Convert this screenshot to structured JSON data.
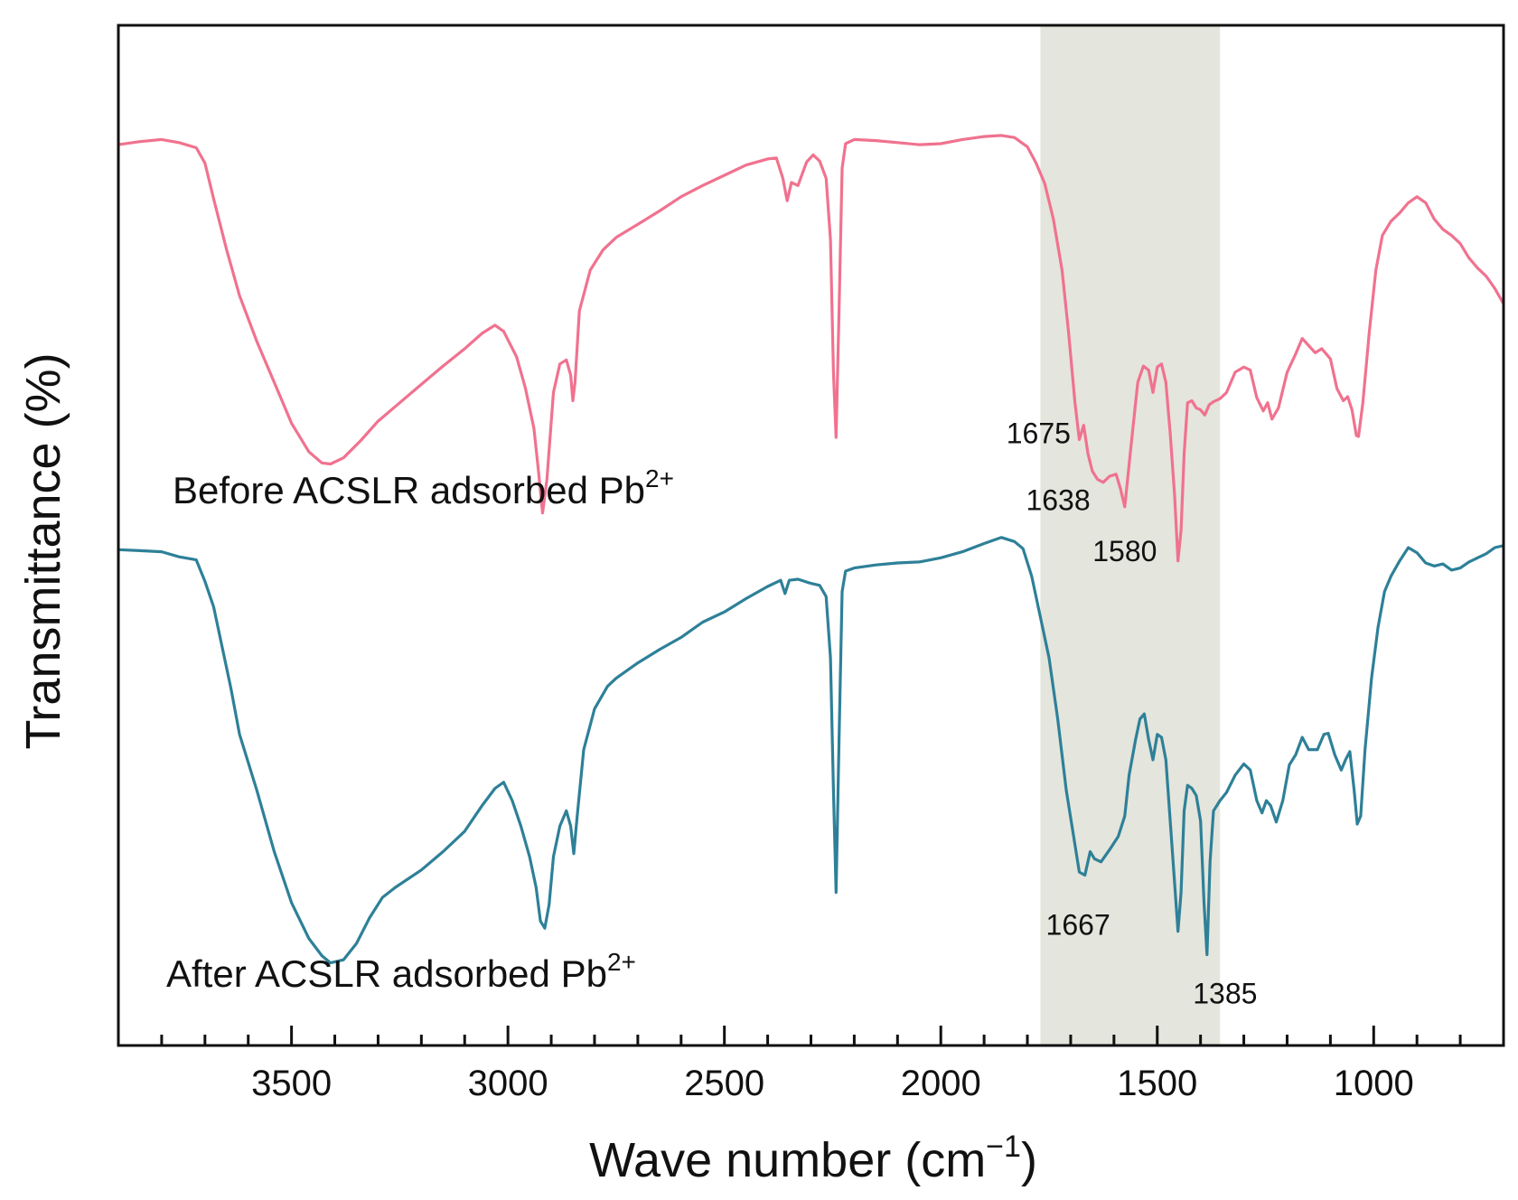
{
  "chart_data": {
    "type": "line",
    "title": "",
    "xlabel": "Wave number (cm",
    "xlabel_sup": "−1",
    "xlabel_end": ")",
    "ylabel": "Transmittance (%)",
    "xlim": [
      3900,
      700
    ],
    "x_reversed": true,
    "xticks": [
      3500,
      3000,
      2500,
      2000,
      1500,
      1000
    ],
    "yticks_shown": false,
    "grid": false,
    "legend": "none",
    "highlight_band": {
      "x_from": 1770,
      "x_to": 1355,
      "color": "#e4e5dc"
    },
    "series": [
      {
        "name": "Before ACSLR adsorbed Pb",
        "name_sup": "2+",
        "color": "#f0728f",
        "points": [
          [
            3900,
            88.3
          ],
          [
            3850,
            88.6
          ],
          [
            3800,
            88.8
          ],
          [
            3760,
            88.5
          ],
          [
            3720,
            88.0
          ],
          [
            3700,
            86.5
          ],
          [
            3680,
            83.0
          ],
          [
            3650,
            78.0
          ],
          [
            3620,
            73.5
          ],
          [
            3580,
            69.0
          ],
          [
            3540,
            65.0
          ],
          [
            3500,
            61.0
          ],
          [
            3460,
            58.2
          ],
          [
            3430,
            57.1
          ],
          [
            3410,
            57.0
          ],
          [
            3380,
            57.6
          ],
          [
            3340,
            59.3
          ],
          [
            3300,
            61.2
          ],
          [
            3250,
            63.0
          ],
          [
            3200,
            64.8
          ],
          [
            3150,
            66.6
          ],
          [
            3100,
            68.3
          ],
          [
            3060,
            69.8
          ],
          [
            3030,
            70.6
          ],
          [
            3010,
            70.0
          ],
          [
            2980,
            67.5
          ],
          [
            2960,
            64.5
          ],
          [
            2940,
            60.5
          ],
          [
            2930,
            56.5
          ],
          [
            2920,
            52.2
          ],
          [
            2910,
            55.5
          ],
          [
            2895,
            64.0
          ],
          [
            2880,
            66.8
          ],
          [
            2865,
            67.2
          ],
          [
            2855,
            65.7
          ],
          [
            2850,
            63.2
          ],
          [
            2845,
            65.0
          ],
          [
            2835,
            72.0
          ],
          [
            2810,
            76.0
          ],
          [
            2780,
            78.0
          ],
          [
            2750,
            79.2
          ],
          [
            2700,
            80.5
          ],
          [
            2650,
            81.8
          ],
          [
            2600,
            83.2
          ],
          [
            2550,
            84.3
          ],
          [
            2500,
            85.3
          ],
          [
            2450,
            86.3
          ],
          [
            2400,
            86.9
          ],
          [
            2380,
            87.0
          ],
          [
            2365,
            85.0
          ],
          [
            2355,
            82.8
          ],
          [
            2345,
            84.6
          ],
          [
            2330,
            84.3
          ],
          [
            2310,
            86.6
          ],
          [
            2295,
            87.3
          ],
          [
            2280,
            86.7
          ],
          [
            2265,
            85.0
          ],
          [
            2255,
            79.0
          ],
          [
            2248,
            66.0
          ],
          [
            2242,
            59.6
          ],
          [
            2235,
            72.0
          ],
          [
            2228,
            86.0
          ],
          [
            2220,
            88.4
          ],
          [
            2200,
            88.8
          ],
          [
            2150,
            88.7
          ],
          [
            2100,
            88.5
          ],
          [
            2050,
            88.3
          ],
          [
            2000,
            88.4
          ],
          [
            1950,
            88.8
          ],
          [
            1900,
            89.1
          ],
          [
            1860,
            89.2
          ],
          [
            1830,
            89.0
          ],
          [
            1800,
            88.1
          ],
          [
            1780,
            86.5
          ],
          [
            1760,
            84.5
          ],
          [
            1740,
            81.0
          ],
          [
            1720,
            76.0
          ],
          [
            1705,
            70.0
          ],
          [
            1690,
            63.0
          ],
          [
            1680,
            59.4
          ],
          [
            1670,
            60.8
          ],
          [
            1660,
            58.0
          ],
          [
            1650,
            56.3
          ],
          [
            1638,
            55.5
          ],
          [
            1625,
            55.2
          ],
          [
            1610,
            55.8
          ],
          [
            1595,
            56.0
          ],
          [
            1585,
            54.6
          ],
          [
            1575,
            52.8
          ],
          [
            1560,
            59.0
          ],
          [
            1545,
            65.0
          ],
          [
            1532,
            66.6
          ],
          [
            1520,
            66.2
          ],
          [
            1510,
            64.0
          ],
          [
            1500,
            66.5
          ],
          [
            1490,
            66.8
          ],
          [
            1480,
            65.0
          ],
          [
            1470,
            60.0
          ],
          [
            1460,
            54.0
          ],
          [
            1452,
            47.5
          ],
          [
            1445,
            50.5
          ],
          [
            1438,
            58.0
          ],
          [
            1430,
            63.0
          ],
          [
            1420,
            63.2
          ],
          [
            1410,
            62.5
          ],
          [
            1400,
            62.3
          ],
          [
            1390,
            61.8
          ],
          [
            1380,
            62.8
          ],
          [
            1370,
            63.1
          ],
          [
            1355,
            63.4
          ],
          [
            1340,
            64.0
          ],
          [
            1320,
            66.0
          ],
          [
            1300,
            66.5
          ],
          [
            1285,
            66.2
          ],
          [
            1270,
            63.5
          ],
          [
            1255,
            62.2
          ],
          [
            1245,
            63.0
          ],
          [
            1235,
            61.4
          ],
          [
            1220,
            62.5
          ],
          [
            1200,
            66.0
          ],
          [
            1180,
            67.8
          ],
          [
            1165,
            69.3
          ],
          [
            1150,
            68.6
          ],
          [
            1135,
            67.9
          ],
          [
            1120,
            68.3
          ],
          [
            1100,
            67.3
          ],
          [
            1085,
            64.4
          ],
          [
            1070,
            63.2
          ],
          [
            1060,
            63.6
          ],
          [
            1050,
            62.3
          ],
          [
            1040,
            59.8
          ],
          [
            1035,
            59.7
          ],
          [
            1025,
            63.0
          ],
          [
            1010,
            70.0
          ],
          [
            995,
            76.0
          ],
          [
            980,
            79.4
          ],
          [
            960,
            80.8
          ],
          [
            940,
            81.6
          ],
          [
            920,
            82.6
          ],
          [
            900,
            83.2
          ],
          [
            880,
            82.6
          ],
          [
            860,
            81.0
          ],
          [
            840,
            80.0
          ],
          [
            820,
            79.4
          ],
          [
            800,
            78.6
          ],
          [
            780,
            77.2
          ],
          [
            760,
            76.2
          ],
          [
            740,
            75.4
          ],
          [
            720,
            74.2
          ],
          [
            700,
            72.7
          ]
        ],
        "annotations": [
          {
            "text": "1675",
            "x": 1675,
            "y": 59.4
          },
          {
            "text": "1638",
            "x": 1638,
            "y": 55.5
          },
          {
            "text": "1580",
            "x": 1580,
            "y": 52.8
          }
        ]
      },
      {
        "name": "After ACSLR adsorbed Pb",
        "name_sup": "2+",
        "color": "#2e8098",
        "points": [
          [
            3900,
            48.6
          ],
          [
            3850,
            48.5
          ],
          [
            3800,
            48.4
          ],
          [
            3760,
            47.9
          ],
          [
            3720,
            47.6
          ],
          [
            3700,
            45.5
          ],
          [
            3680,
            43.0
          ],
          [
            3660,
            39.0
          ],
          [
            3640,
            35.0
          ],
          [
            3620,
            30.5
          ],
          [
            3580,
            25.0
          ],
          [
            3540,
            19.0
          ],
          [
            3500,
            14.0
          ],
          [
            3460,
            10.5
          ],
          [
            3430,
            8.8
          ],
          [
            3410,
            8.1
          ],
          [
            3380,
            8.4
          ],
          [
            3350,
            10.0
          ],
          [
            3320,
            12.5
          ],
          [
            3290,
            14.5
          ],
          [
            3260,
            15.5
          ],
          [
            3200,
            17.2
          ],
          [
            3150,
            19.0
          ],
          [
            3100,
            21.0
          ],
          [
            3060,
            23.5
          ],
          [
            3030,
            25.2
          ],
          [
            3010,
            25.8
          ],
          [
            2990,
            24.0
          ],
          [
            2970,
            21.5
          ],
          [
            2950,
            18.5
          ],
          [
            2935,
            15.5
          ],
          [
            2925,
            12.2
          ],
          [
            2915,
            11.5
          ],
          [
            2905,
            13.8
          ],
          [
            2895,
            18.5
          ],
          [
            2880,
            21.5
          ],
          [
            2865,
            23.0
          ],
          [
            2855,
            21.5
          ],
          [
            2848,
            18.8
          ],
          [
            2840,
            22.5
          ],
          [
            2825,
            29.0
          ],
          [
            2800,
            33.0
          ],
          [
            2770,
            35.2
          ],
          [
            2750,
            36.0
          ],
          [
            2700,
            37.5
          ],
          [
            2650,
            38.8
          ],
          [
            2600,
            40.0
          ],
          [
            2550,
            41.5
          ],
          [
            2500,
            42.5
          ],
          [
            2450,
            43.8
          ],
          [
            2400,
            45.0
          ],
          [
            2370,
            45.6
          ],
          [
            2360,
            44.3
          ],
          [
            2350,
            45.6
          ],
          [
            2330,
            45.7
          ],
          [
            2300,
            45.3
          ],
          [
            2280,
            45.1
          ],
          [
            2265,
            44.0
          ],
          [
            2255,
            38.0
          ],
          [
            2248,
            25.0
          ],
          [
            2242,
            15.0
          ],
          [
            2235,
            30.0
          ],
          [
            2228,
            44.5
          ],
          [
            2220,
            46.5
          ],
          [
            2200,
            46.8
          ],
          [
            2150,
            47.1
          ],
          [
            2100,
            47.3
          ],
          [
            2050,
            47.4
          ],
          [
            2000,
            47.8
          ],
          [
            1950,
            48.4
          ],
          [
            1900,
            49.2
          ],
          [
            1860,
            49.8
          ],
          [
            1830,
            49.4
          ],
          [
            1810,
            48.7
          ],
          [
            1790,
            46.0
          ],
          [
            1770,
            42.0
          ],
          [
            1750,
            38.0
          ],
          [
            1730,
            32.0
          ],
          [
            1710,
            25.0
          ],
          [
            1695,
            21.0
          ],
          [
            1680,
            17.0
          ],
          [
            1667,
            16.7
          ],
          [
            1655,
            19.0
          ],
          [
            1645,
            18.3
          ],
          [
            1630,
            18.0
          ],
          [
            1610,
            19.2
          ],
          [
            1590,
            20.5
          ],
          [
            1575,
            22.5
          ],
          [
            1565,
            26.5
          ],
          [
            1550,
            30.0
          ],
          [
            1540,
            32.0
          ],
          [
            1530,
            32.5
          ],
          [
            1520,
            30.0
          ],
          [
            1510,
            28.0
          ],
          [
            1500,
            30.5
          ],
          [
            1490,
            30.2
          ],
          [
            1480,
            28.0
          ],
          [
            1470,
            22.0
          ],
          [
            1460,
            16.0
          ],
          [
            1452,
            11.2
          ],
          [
            1445,
            15.0
          ],
          [
            1438,
            23.0
          ],
          [
            1430,
            25.5
          ],
          [
            1420,
            25.2
          ],
          [
            1410,
            24.5
          ],
          [
            1400,
            22.0
          ],
          [
            1392,
            14.0
          ],
          [
            1385,
            8.9
          ],
          [
            1378,
            18.0
          ],
          [
            1370,
            23.0
          ],
          [
            1355,
            24.0
          ],
          [
            1340,
            24.8
          ],
          [
            1320,
            26.5
          ],
          [
            1300,
            27.6
          ],
          [
            1285,
            27.0
          ],
          [
            1270,
            24.0
          ],
          [
            1258,
            22.8
          ],
          [
            1248,
            24.0
          ],
          [
            1238,
            23.5
          ],
          [
            1225,
            21.9
          ],
          [
            1210,
            24.0
          ],
          [
            1195,
            27.5
          ],
          [
            1180,
            28.5
          ],
          [
            1165,
            30.2
          ],
          [
            1150,
            29.0
          ],
          [
            1130,
            29.0
          ],
          [
            1115,
            30.5
          ],
          [
            1105,
            30.6
          ],
          [
            1090,
            28.5
          ],
          [
            1075,
            27.0
          ],
          [
            1065,
            28.0
          ],
          [
            1055,
            28.8
          ],
          [
            1045,
            25.0
          ],
          [
            1038,
            21.7
          ],
          [
            1030,
            22.5
          ],
          [
            1020,
            29.0
          ],
          [
            1005,
            36.0
          ],
          [
            990,
            41.0
          ],
          [
            975,
            44.5
          ],
          [
            960,
            46.0
          ],
          [
            940,
            47.5
          ],
          [
            920,
            48.8
          ],
          [
            900,
            48.3
          ],
          [
            880,
            47.3
          ],
          [
            860,
            47.0
          ],
          [
            840,
            47.2
          ],
          [
            820,
            46.6
          ],
          [
            800,
            46.8
          ],
          [
            780,
            47.4
          ],
          [
            760,
            47.8
          ],
          [
            740,
            48.2
          ],
          [
            720,
            48.8
          ],
          [
            700,
            49.0
          ]
        ],
        "annotations": [
          {
            "text": "1667",
            "x": 1667,
            "y": 16.7
          },
          {
            "text": "1385",
            "x": 1385,
            "y": 8.9
          }
        ]
      }
    ]
  }
}
